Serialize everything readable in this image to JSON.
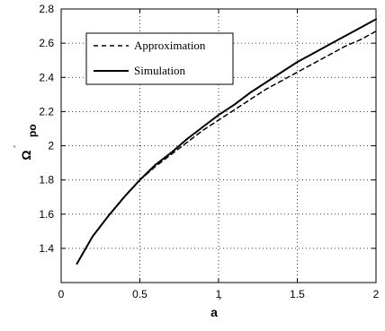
{
  "chart_data": {
    "type": "line",
    "title": "",
    "xlabel": "a",
    "xlabel_mark": "´",
    "ylabel": "Ω",
    "ylabel_sub": "po",
    "ylabel_mark": "´",
    "xlim": [
      0,
      2
    ],
    "ylim": [
      1.2,
      2.8
    ],
    "xticks": [
      0,
      0.5,
      1,
      1.5,
      2
    ],
    "xtick_labels": [
      "0",
      "0.5",
      "1",
      "1.5",
      "2"
    ],
    "yticks": [
      1.4,
      1.6,
      1.8,
      2.0,
      2.2,
      2.4,
      2.6,
      2.8
    ],
    "ytick_labels": [
      "1.4",
      "1.6",
      "1.8",
      "2",
      "2.2",
      "2.4",
      "2.6",
      "2.8"
    ],
    "grid": true,
    "legend_position": "top-left",
    "series": [
      {
        "name": "Approximation",
        "style": "dashed",
        "color": "#000000",
        "x": [
          0.1,
          0.2,
          0.3,
          0.4,
          0.5,
          0.6,
          0.7,
          0.8,
          0.9,
          1.0,
          1.1,
          1.2,
          1.3,
          1.4,
          1.5,
          1.6,
          1.7,
          1.8,
          1.9,
          2.0
        ],
        "y": [
          1.31,
          1.47,
          1.59,
          1.7,
          1.8,
          1.88,
          1.95,
          2.02,
          2.09,
          2.15,
          2.21,
          2.27,
          2.33,
          2.38,
          2.43,
          2.48,
          2.53,
          2.58,
          2.62,
          2.67
        ]
      },
      {
        "name": "Simulation",
        "style": "solid",
        "color": "#000000",
        "x": [
          0.1,
          0.2,
          0.3,
          0.4,
          0.5,
          0.6,
          0.7,
          0.8,
          0.9,
          1.0,
          1.1,
          1.2,
          1.3,
          1.4,
          1.5,
          1.6,
          1.7,
          1.8,
          1.9,
          2.0
        ],
        "y": [
          1.31,
          1.47,
          1.59,
          1.7,
          1.8,
          1.89,
          1.96,
          2.04,
          2.11,
          2.18,
          2.24,
          2.31,
          2.37,
          2.43,
          2.49,
          2.54,
          2.59,
          2.64,
          2.69,
          2.74
        ]
      }
    ]
  }
}
